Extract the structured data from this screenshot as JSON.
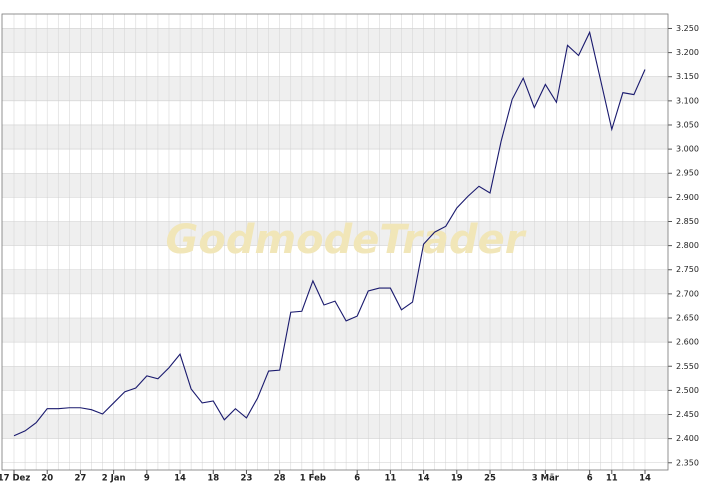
{
  "chart_data": {
    "type": "line",
    "watermark": "GodmodeTrader",
    "categories": [
      "17 Dez",
      null,
      null,
      "20",
      null,
      null,
      "27",
      null,
      null,
      "2 Jan",
      null,
      null,
      "9",
      null,
      null,
      "14",
      null,
      null,
      "18",
      null,
      null,
      "23",
      null,
      null,
      "28",
      null,
      null,
      "1 Feb",
      null,
      null,
      null,
      "6",
      null,
      null,
      "11",
      null,
      null,
      "14",
      null,
      null,
      "19",
      null,
      null,
      "25",
      null,
      null,
      null,
      null,
      "3 Mär",
      null,
      null,
      null,
      "6",
      null,
      "11",
      null,
      null,
      "14"
    ],
    "values": [
      2406,
      2416,
      2433,
      2462,
      2462,
      2464,
      2464,
      2460,
      2451,
      2474,
      2497,
      2505,
      2530,
      2524,
      2547,
      2575,
      2503,
      2474,
      2478,
      2439,
      2462,
      2443,
      2484,
      2540,
      2542,
      2662,
      2664,
      2727,
      2677,
      2685,
      2644,
      2654,
      2706,
      2712,
      2712,
      2667,
      2683,
      2803,
      2828,
      2840,
      2878,
      2902,
      2923,
      2909,
      3016,
      3103,
      3147,
      3086,
      3134,
      3097,
      3215,
      3194,
      3242,
      3142,
      3041,
      3117,
      3113,
      3165
    ],
    "color": "#1a1a6e",
    "ylim": [
      2335,
      3280
    ],
    "yticks": [
      {
        "value": 2350,
        "label": "2.350"
      },
      {
        "value": 2400,
        "label": "2.400"
      },
      {
        "value": 2450,
        "label": "2.450"
      },
      {
        "value": 2500,
        "label": "2.500"
      },
      {
        "value": 2550,
        "label": "2.550"
      },
      {
        "value": 2600,
        "label": "2.600"
      },
      {
        "value": 2650,
        "label": "2.650"
      },
      {
        "value": 2700,
        "label": "2.700"
      },
      {
        "value": 2750,
        "label": "2.750"
      },
      {
        "value": 2800,
        "label": "2.800"
      },
      {
        "value": 2850,
        "label": "2.850"
      },
      {
        "value": 2900,
        "label": "2.900"
      },
      {
        "value": 2950,
        "label": "2.950"
      },
      {
        "value": 3000,
        "label": "3.000"
      },
      {
        "value": 3050,
        "label": "3.050"
      },
      {
        "value": 3100,
        "label": "3.100"
      },
      {
        "value": 3150,
        "label": "3.150"
      },
      {
        "value": 3200,
        "label": "3.200"
      },
      {
        "value": 3250,
        "label": "3.250"
      }
    ],
    "grid": true
  }
}
